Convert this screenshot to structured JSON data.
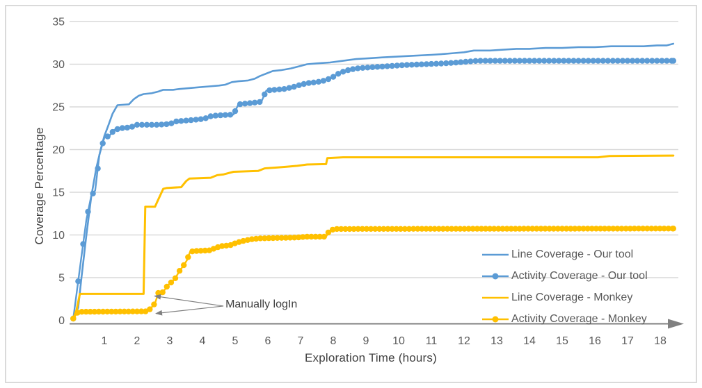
{
  "chart_data": {
    "type": "line",
    "title": "",
    "xlabel": "Exploration Time (hours)",
    "ylabel": "Coverage Percentage",
    "xlim": [
      0,
      18.45
    ],
    "ylim": [
      0,
      35
    ],
    "x_ticks": [
      1,
      2,
      3,
      4,
      5,
      6,
      7,
      8,
      9,
      10,
      11,
      12,
      13,
      14,
      15,
      16,
      17,
      18
    ],
    "y_ticks": [
      0,
      5,
      10,
      15,
      20,
      25,
      30,
      35
    ],
    "grid": "horizontal-only",
    "legend_position": "inside-bottom-right",
    "annotation": {
      "text": "Manually logIn",
      "label_pos": [
        4.64,
        1.67
      ],
      "arrow_targets": [
        [
          2.45,
          2.85
        ],
        [
          2.49,
          0.8
        ]
      ]
    },
    "series": [
      {
        "name": "Line Coverage - Our tool",
        "color": "#5B9BD5",
        "marker": false,
        "line_width": 2.6,
        "points": [
          [
            0.05,
            0.2
          ],
          [
            0.2,
            1.5
          ],
          [
            0.3,
            5
          ],
          [
            0.45,
            10
          ],
          [
            0.6,
            14.5
          ],
          [
            0.75,
            17.8
          ],
          [
            0.9,
            20.2
          ],
          [
            1.0,
            21.6
          ],
          [
            1.1,
            22.6
          ],
          [
            1.25,
            24.2
          ],
          [
            1.4,
            25.2
          ],
          [
            1.75,
            25.3
          ],
          [
            1.9,
            25.9
          ],
          [
            2.05,
            26.3
          ],
          [
            2.2,
            26.5
          ],
          [
            2.45,
            26.6
          ],
          [
            2.65,
            26.8
          ],
          [
            2.8,
            27.0
          ],
          [
            3.1,
            27.0
          ],
          [
            3.3,
            27.1
          ],
          [
            3.6,
            27.2
          ],
          [
            3.9,
            27.3
          ],
          [
            4.2,
            27.4
          ],
          [
            4.5,
            27.5
          ],
          [
            4.7,
            27.6
          ],
          [
            4.9,
            27.9
          ],
          [
            5.1,
            28.0
          ],
          [
            5.4,
            28.1
          ],
          [
            5.6,
            28.3
          ],
          [
            5.75,
            28.6
          ],
          [
            5.95,
            28.9
          ],
          [
            6.15,
            29.2
          ],
          [
            6.4,
            29.3
          ],
          [
            6.7,
            29.5
          ],
          [
            7.0,
            29.8
          ],
          [
            7.2,
            30.0
          ],
          [
            7.5,
            30.1
          ],
          [
            7.9,
            30.2
          ],
          [
            8.3,
            30.4
          ],
          [
            8.7,
            30.6
          ],
          [
            9.1,
            30.7
          ],
          [
            9.5,
            30.8
          ],
          [
            10.0,
            30.9
          ],
          [
            10.5,
            31.0
          ],
          [
            11.0,
            31.1
          ],
          [
            11.4,
            31.2
          ],
          [
            11.7,
            31.3
          ],
          [
            12.0,
            31.4
          ],
          [
            12.3,
            31.6
          ],
          [
            12.8,
            31.6
          ],
          [
            13.2,
            31.7
          ],
          [
            13.6,
            31.8
          ],
          [
            14.0,
            31.8
          ],
          [
            14.5,
            31.9
          ],
          [
            15.0,
            31.9
          ],
          [
            15.5,
            32.0
          ],
          [
            16.0,
            32.0
          ],
          [
            16.5,
            32.1
          ],
          [
            17.0,
            32.1
          ],
          [
            17.5,
            32.1
          ],
          [
            17.9,
            32.2
          ],
          [
            18.2,
            32.2
          ],
          [
            18.4,
            32.4
          ]
        ]
      },
      {
        "name": "Activity Coverage - Our tool",
        "color": "#5B9BD5",
        "marker": true,
        "marker_step": 0.15,
        "line_width": 2.4,
        "points": [
          [
            0.05,
            0.2
          ],
          [
            0.3,
            7.5
          ],
          [
            0.45,
            11.8
          ],
          [
            0.6,
            14.6
          ],
          [
            0.72,
            15.2
          ],
          [
            0.85,
            19.4
          ],
          [
            1.0,
            21.4
          ],
          [
            1.15,
            21.6
          ],
          [
            1.3,
            22.3
          ],
          [
            1.5,
            22.5
          ],
          [
            1.8,
            22.6
          ],
          [
            2.0,
            22.9
          ],
          [
            2.6,
            22.9
          ],
          [
            3.0,
            23.0
          ],
          [
            3.2,
            23.3
          ],
          [
            3.5,
            23.4
          ],
          [
            3.8,
            23.5
          ],
          [
            4.05,
            23.6
          ],
          [
            4.25,
            23.9
          ],
          [
            4.45,
            24.0
          ],
          [
            4.95,
            24.1
          ],
          [
            5.1,
            25.3
          ],
          [
            5.35,
            25.4
          ],
          [
            5.6,
            25.5
          ],
          [
            5.8,
            25.6
          ],
          [
            5.95,
            26.9
          ],
          [
            6.2,
            27.0
          ],
          [
            6.5,
            27.1
          ],
          [
            6.75,
            27.3
          ],
          [
            7.0,
            27.6
          ],
          [
            7.25,
            27.8
          ],
          [
            7.5,
            27.9
          ],
          [
            7.75,
            28.1
          ],
          [
            7.95,
            28.4
          ],
          [
            8.2,
            29.0
          ],
          [
            8.45,
            29.3
          ],
          [
            8.7,
            29.5
          ],
          [
            9.0,
            29.6
          ],
          [
            9.4,
            29.7
          ],
          [
            9.8,
            29.8
          ],
          [
            10.2,
            29.9
          ],
          [
            10.8,
            30.0
          ],
          [
            11.4,
            30.1
          ],
          [
            11.8,
            30.2
          ],
          [
            12.1,
            30.3
          ],
          [
            12.4,
            30.4
          ],
          [
            18.4,
            30.4
          ]
        ]
      },
      {
        "name": "Line Coverage - Monkey",
        "color": "#FFC000",
        "marker": false,
        "line_width": 3,
        "points": [
          [
            0.05,
            0.2
          ],
          [
            0.15,
            1.2
          ],
          [
            0.25,
            3.1
          ],
          [
            2.2,
            3.1
          ],
          [
            2.25,
            13.3
          ],
          [
            2.55,
            13.3
          ],
          [
            2.62,
            13.9
          ],
          [
            2.8,
            15.4
          ],
          [
            2.9,
            15.5
          ],
          [
            3.35,
            15.6
          ],
          [
            3.5,
            16.3
          ],
          [
            3.6,
            16.6
          ],
          [
            4.25,
            16.7
          ],
          [
            4.45,
            17.0
          ],
          [
            4.65,
            17.1
          ],
          [
            4.95,
            17.4
          ],
          [
            5.7,
            17.5
          ],
          [
            5.9,
            17.8
          ],
          [
            6.3,
            17.9
          ],
          [
            6.6,
            18.0
          ],
          [
            6.9,
            18.1
          ],
          [
            7.2,
            18.25
          ],
          [
            7.78,
            18.3
          ],
          [
            7.82,
            19.0
          ],
          [
            8.3,
            19.1
          ],
          [
            16.1,
            19.1
          ],
          [
            16.45,
            19.25
          ],
          [
            18.4,
            19.3
          ]
        ]
      },
      {
        "name": "Activity Coverage - Monkey",
        "color": "#FFC000",
        "marker": true,
        "marker_step": 0.13,
        "line_width": 2.4,
        "points": [
          [
            0.05,
            0.2
          ],
          [
            0.2,
            1.0
          ],
          [
            2.32,
            1.05
          ],
          [
            2.42,
            1.4
          ],
          [
            2.55,
            2.0
          ],
          [
            2.65,
            3.2
          ],
          [
            2.8,
            3.3
          ],
          [
            2.9,
            3.9
          ],
          [
            3.0,
            4.3
          ],
          [
            3.15,
            4.8
          ],
          [
            3.3,
            5.8
          ],
          [
            3.42,
            6.4
          ],
          [
            3.52,
            7.0
          ],
          [
            3.62,
            8.0
          ],
          [
            3.72,
            8.1
          ],
          [
            4.25,
            8.2
          ],
          [
            4.4,
            8.5
          ],
          [
            4.6,
            8.7
          ],
          [
            4.85,
            8.8
          ],
          [
            5.05,
            9.1
          ],
          [
            5.25,
            9.3
          ],
          [
            5.5,
            9.5
          ],
          [
            5.75,
            9.6
          ],
          [
            6.9,
            9.7
          ],
          [
            7.15,
            9.8
          ],
          [
            7.78,
            9.8
          ],
          [
            7.88,
            10.5
          ],
          [
            8.05,
            10.7
          ],
          [
            18.4,
            10.75
          ]
        ]
      }
    ]
  },
  "style": {
    "blue": "#5B9BD5",
    "gold": "#FFC000",
    "grid_color": "#D9D9D9",
    "axis_color": "#808080",
    "tick_text_color": "#595959",
    "title_text_color": "#404040",
    "border_color": "#DADADA",
    "background": "#FFFFFF"
  }
}
